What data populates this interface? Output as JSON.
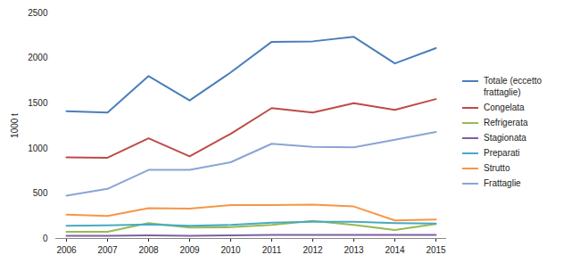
{
  "chart_data": {
    "type": "line",
    "y_label": "1000 t",
    "x": [
      2006,
      2007,
      2008,
      2009,
      2010,
      2011,
      2012,
      2013,
      2014,
      2015
    ],
    "series": [
      {
        "name": "Totale (eccetto frattaglie)",
        "color": "#4a7ebb",
        "values": [
          1410,
          1395,
          1800,
          1530,
          1840,
          2180,
          2185,
          2235,
          1940,
          2110
        ]
      },
      {
        "name": "Congelata",
        "color": "#be4b48",
        "values": [
          900,
          895,
          1110,
          910,
          1160,
          1445,
          1395,
          1500,
          1425,
          1545
        ]
      },
      {
        "name": "Refrigerata",
        "color": "#98b954",
        "values": [
          75,
          75,
          170,
          120,
          125,
          150,
          195,
          150,
          95,
          160
        ]
      },
      {
        "name": "Stagionata",
        "color": "#7d60a0",
        "values": [
          30,
          30,
          35,
          30,
          35,
          40,
          40,
          40,
          40,
          40
        ]
      },
      {
        "name": "Preparati",
        "color": "#46aac5",
        "values": [
          140,
          145,
          155,
          140,
          150,
          175,
          185,
          185,
          170,
          165
        ]
      },
      {
        "name": "Strutto",
        "color": "#f79646",
        "values": [
          265,
          250,
          335,
          330,
          370,
          370,
          375,
          355,
          200,
          210
        ]
      },
      {
        "name": "Frattaglie",
        "color": "#8aa4d6",
        "values": [
          475,
          550,
          760,
          760,
          845,
          1050,
          1015,
          1010,
          1095,
          1180
        ]
      }
    ],
    "ylim": [
      0,
      2500
    ],
    "yticks": [
      0,
      500,
      1000,
      1500,
      2000,
      2500
    ],
    "grid": false,
    "legend": "right"
  }
}
